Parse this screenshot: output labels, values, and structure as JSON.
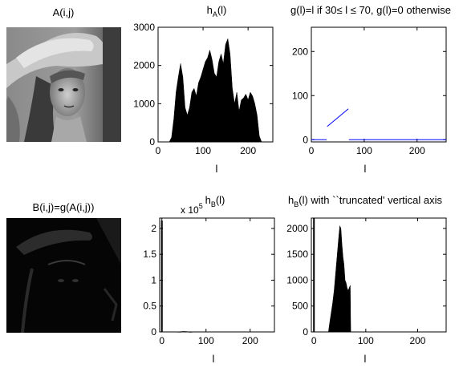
{
  "images": [
    {
      "title": "A(i,j)",
      "depicts": "grayscale photo of a woman wearing a hat"
    },
    {
      "title": "B(i,j)=g(A(i,j))",
      "depicts": "mostly black thresholded version of the photo"
    }
  ],
  "chart_data": [
    {
      "type": "area",
      "title": "h_A(l)",
      "title_main": "h",
      "title_sub": "A",
      "title_tail": "(l)",
      "xlabel": "l",
      "xlim": [
        0,
        255
      ],
      "ylim": [
        0,
        3000
      ],
      "xticks": [
        0,
        100,
        200
      ],
      "yticks": [
        0,
        1000,
        2000,
        3000
      ],
      "color": "#000000",
      "x": [
        25,
        30,
        35,
        40,
        45,
        50,
        55,
        60,
        65,
        70,
        75,
        80,
        85,
        90,
        95,
        100,
        105,
        110,
        115,
        120,
        125,
        130,
        135,
        140,
        145,
        150,
        155,
        160,
        165,
        170,
        175,
        180,
        185,
        190,
        195,
        200,
        205,
        210,
        215,
        220,
        225,
        230
      ],
      "values": [
        0,
        120,
        600,
        1300,
        1700,
        2050,
        1700,
        900,
        700,
        900,
        1300,
        1400,
        1200,
        1550,
        1700,
        1900,
        2100,
        2200,
        2400,
        2150,
        1800,
        1700,
        2100,
        2300,
        2050,
        2550,
        2700,
        2300,
        1400,
        1000,
        1300,
        800,
        1100,
        1150,
        1250,
        1100,
        1300,
        1200,
        1000,
        700,
        150,
        0
      ]
    },
    {
      "type": "line",
      "title": "g(l)=l if 30≤ l ≤ 70, g(l)=0 otherwise",
      "xlabel": "l",
      "xlim": [
        0,
        255
      ],
      "ylim": [
        -5,
        255
      ],
      "xticks": [
        0,
        100,
        200
      ],
      "yticks": [
        0,
        100,
        200
      ],
      "color": "#0000ff",
      "series": [
        {
          "x": [
            0,
            29
          ],
          "y": [
            0,
            0
          ]
        },
        {
          "x": [
            30,
            70
          ],
          "y": [
            30,
            70
          ]
        },
        {
          "x": [
            71,
            255
          ],
          "y": [
            0,
            0
          ]
        }
      ]
    },
    {
      "type": "bar",
      "title": "h_B(l)",
      "title_main": "h",
      "title_sub": "B",
      "title_tail": "(l)",
      "xlabel": "l",
      "xlim": [
        -5,
        255
      ],
      "ylim": [
        0,
        2.2
      ],
      "y_multiplier": "x 10",
      "y_multiplier_exp": "5",
      "xticks": [
        0,
        100,
        200
      ],
      "yticks": [
        0,
        0.5,
        1,
        1.5,
        2
      ],
      "ytick_labels": [
        "0",
        "0.5",
        "1",
        "1.5",
        "2"
      ],
      "color": "#000000",
      "x": [
        0,
        40,
        45,
        50,
        55,
        60,
        65
      ],
      "values": [
        2.15,
        0.006,
        0.01,
        0.012,
        0.01,
        0.008,
        0.005
      ]
    },
    {
      "type": "area",
      "title": "h_B(l) with ``truncated' vertical axis",
      "title_main": "h",
      "title_sub": "B",
      "title_tail": "(l) with ``truncated' vertical axis",
      "xlabel": "l",
      "xlim": [
        -5,
        255
      ],
      "ylim": [
        0,
        2200
      ],
      "xticks": [
        0,
        100,
        200
      ],
      "yticks": [
        0,
        500,
        1000,
        1500,
        2000
      ],
      "color": "#000000",
      "spike": {
        "x": 0,
        "value": 2200
      },
      "x": [
        28,
        30,
        33,
        36,
        39,
        42,
        45,
        48,
        50,
        52,
        54,
        56,
        58,
        60,
        62,
        64,
        66,
        68,
        70,
        71
      ],
      "values": [
        0,
        150,
        350,
        550,
        800,
        1150,
        1500,
        1850,
        2050,
        2000,
        1700,
        1450,
        1300,
        1000,
        950,
        850,
        800,
        850,
        900,
        0
      ]
    }
  ]
}
